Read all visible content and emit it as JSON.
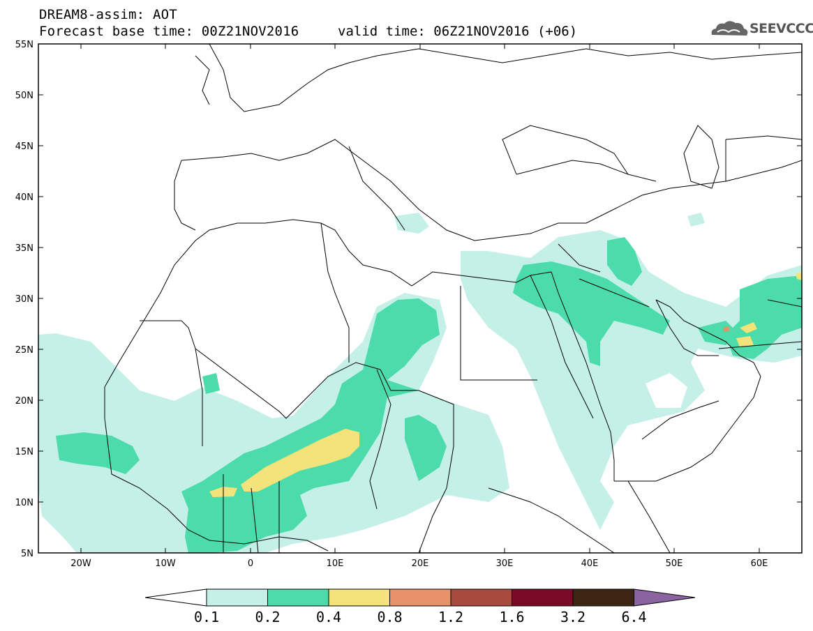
{
  "header": {
    "line1": "DREAM8-assim: AOT",
    "line2_left": "Forecast base time: 00Z21NOV2016",
    "line2_right": "valid time: 06Z21NOV2016 (+06)",
    "logo_text": "SEEVCCC"
  },
  "map": {
    "extent": {
      "lon": [
        -25,
        65
      ],
      "lat": [
        5,
        55
      ]
    },
    "lat_labels": [
      "55N",
      "50N",
      "45N",
      "40N",
      "35N",
      "30N",
      "25N",
      "20N",
      "15N",
      "10N",
      "5N"
    ],
    "lon_labels": [
      "20W",
      "10W",
      "0",
      "10E",
      "20E",
      "30E",
      "40E",
      "50E",
      "60E"
    ],
    "lat_values": [
      55,
      50,
      45,
      40,
      35,
      30,
      25,
      20,
      15,
      10,
      5
    ],
    "lon_values": [
      -20,
      -10,
      0,
      10,
      20,
      30,
      40,
      50,
      60
    ]
  },
  "colorbar": {
    "levels": [
      "0.1",
      "0.2",
      "0.4",
      "0.8",
      "1.2",
      "1.6",
      "3.2",
      "6.4"
    ],
    "colors": [
      "#ffffff",
      "#c4f0e8",
      "#4cdbab",
      "#f4e37a",
      "#e8926a",
      "#a94a3e",
      "#7a0a28",
      "#3d2513",
      "#8a63a0"
    ]
  },
  "legend_colors": {
    "light_teal": "#c4f0e8",
    "teal": "#4cdbab",
    "yellow": "#f4e37a",
    "orange": "#e8926a"
  }
}
